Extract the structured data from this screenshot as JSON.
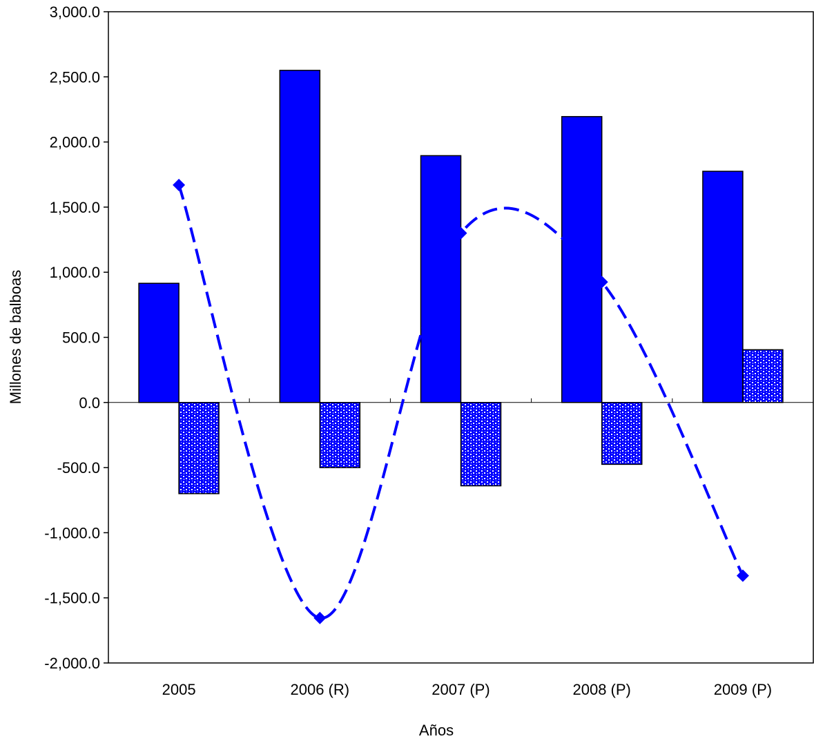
{
  "chart_data": {
    "type": "bar",
    "title": "",
    "xlabel": "Años",
    "ylabel": "Millones de balboas",
    "categories": [
      "2005",
      "2006 (R)",
      "2007 (P)",
      "2008 (P)",
      "2009 (P)"
    ],
    "ylim": [
      -2000,
      3000
    ],
    "yticks": [
      -2000,
      -1500,
      -1000,
      -500,
      0,
      500,
      1000,
      1500,
      2000,
      2500,
      3000
    ],
    "ytick_labels": [
      "-2,000.0",
      "-1,500.0",
      "-1,000.0",
      "-500.0",
      "0.0",
      "500.0",
      "1,000.0",
      "1,500.0",
      "2,000.0",
      "2,500.0",
      "3,000.0"
    ],
    "grid": false,
    "legend": "none",
    "series": [
      {
        "type": "bar",
        "pattern": "solid",
        "color": "#0000ff",
        "values": [
          915,
          2550,
          1895,
          2195,
          1775
        ]
      },
      {
        "type": "bar",
        "pattern": "dotted",
        "color": "#0000ff",
        "values": [
          -700,
          -500,
          -640,
          -475,
          405
        ]
      },
      {
        "type": "line",
        "style": "dashed-smoothed",
        "marker": "diamond",
        "color": "#0000ff",
        "values": [
          1670,
          -1655,
          1300,
          925,
          -1330
        ]
      }
    ]
  }
}
